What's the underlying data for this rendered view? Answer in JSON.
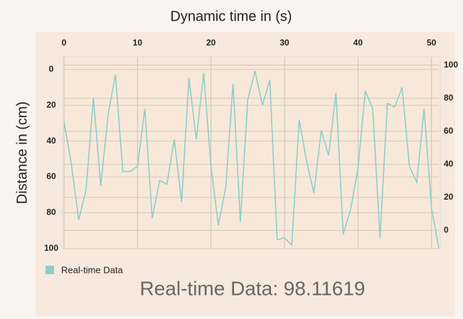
{
  "chart_data": {
    "type": "line",
    "title": "Dynamic time in (s)",
    "y_label": "Distance in (cm)",
    "annotation": "Real-time Data: 98.11619",
    "x": [
      0,
      1,
      2,
      3,
      4,
      5,
      6,
      7,
      8,
      9,
      10,
      11,
      12,
      13,
      14,
      15,
      16,
      17,
      18,
      19,
      20,
      21,
      22,
      23,
      24,
      25,
      26,
      27,
      28,
      29,
      30,
      31,
      32,
      33,
      34,
      35,
      36,
      37,
      38,
      39,
      40,
      41,
      42,
      43,
      44,
      45,
      46,
      47,
      48,
      49,
      50,
      51
    ],
    "series": [
      {
        "name": "Real-time Data",
        "color": "#8ccfc8",
        "values": [
          29,
          53,
          84,
          67,
          16,
          65,
          25,
          3,
          57,
          57,
          54,
          22,
          83,
          62,
          64,
          39,
          74,
          5,
          39,
          2,
          54,
          87,
          66,
          8,
          85,
          17,
          1,
          20,
          6,
          95,
          94,
          98,
          28,
          51,
          69,
          34,
          48,
          13,
          92,
          78,
          55,
          12,
          22,
          94,
          19,
          21,
          10,
          54,
          63,
          22,
          77,
          100
        ]
      }
    ],
    "xlim": [
      0,
      51
    ],
    "xticks": [
      0,
      10,
      20,
      30,
      40,
      50
    ],
    "ylim": [
      100,
      -7
    ],
    "yticks": [
      0,
      20,
      40,
      60,
      80,
      100
    ],
    "y2lim": [
      -11,
      105
    ],
    "y2ticks": [
      0,
      20,
      40,
      60,
      80,
      100
    ],
    "grid": true
  }
}
